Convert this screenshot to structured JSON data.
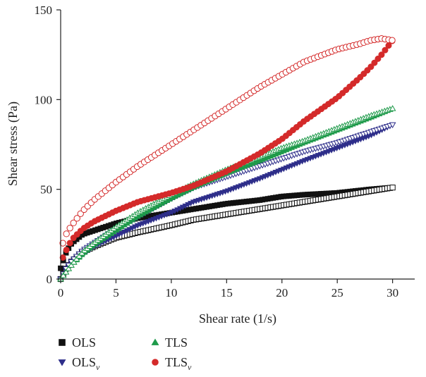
{
  "chart_data": {
    "type": "scatter",
    "title": "",
    "xlabel": "Shear rate (1/s)",
    "ylabel": "Shear stress (Pa)",
    "xlim": [
      0,
      32
    ],
    "ylim": [
      0,
      150
    ],
    "xticks": [
      "0",
      "5",
      "10",
      "15",
      "20",
      "25",
      "30"
    ],
    "yticks": [
      "0",
      "50",
      "100",
      "150"
    ],
    "grid": false,
    "legend_position": "bottom",
    "series": [
      {
        "name": "OLS",
        "subscript": "",
        "marker": "square",
        "color": "#111111",
        "curves": [
          {
            "fill": "solid",
            "x": [
              0,
              0.5,
              1,
              2,
              3,
              5,
              7,
              10,
              12,
              15,
              18,
              20,
              22,
              25,
              28,
              30
            ],
            "y": [
              6,
              15,
              20,
              25,
              27,
              31,
              34,
              37,
              39,
              42,
              44,
              46,
              47,
              48,
              50,
              51
            ]
          },
          {
            "fill": "open",
            "x": [
              0,
              0.5,
              1,
              2,
              3,
              5,
              7,
              10,
              12,
              15,
              18,
              20,
              22,
              25,
              28,
              30
            ],
            "y": [
              0,
              6,
              10,
              15,
              18,
              23,
              26,
              30,
              33,
              36,
              39,
              41,
              43,
              46,
              49,
              51
            ]
          }
        ]
      },
      {
        "name": "OLS",
        "subscript": "v",
        "marker": "triangle-down",
        "color": "#2e2e8a",
        "curves": [
          {
            "fill": "solid",
            "x": [
              0,
              0.5,
              1,
              2,
              3,
              5,
              7,
              10,
              12,
              15,
              18,
              20,
              22,
              25,
              28,
              30
            ],
            "y": [
              0,
              5,
              9,
              14,
              18,
              24,
              30,
              37,
              43,
              49,
              56,
              61,
              66,
              73,
              80,
              86
            ]
          },
          {
            "fill": "open",
            "x": [
              0,
              0.5,
              1,
              2,
              3,
              5,
              7,
              10,
              12,
              15,
              18,
              20,
              22,
              25,
              28,
              30
            ],
            "y": [
              0,
              6,
              10,
              16,
              20,
              28,
              35,
              45,
              51,
              57,
              63,
              67,
              71,
              76,
              82,
              86
            ]
          }
        ]
      },
      {
        "name": "TLS",
        "subscript": "",
        "marker": "triangle-up",
        "color": "#1e9a4a",
        "curves": [
          {
            "fill": "solid",
            "x": [
              0,
              0.5,
              1,
              2,
              3,
              5,
              7,
              10,
              12,
              15,
              18,
              20,
              22,
              25,
              28,
              30
            ],
            "y": [
              0,
              4,
              8,
              14,
              19,
              27,
              35,
              45,
              51,
              59,
              66,
              71,
              76,
              83,
              90,
              95
            ]
          },
          {
            "fill": "open",
            "x": [
              0,
              0.5,
              1,
              2,
              3,
              5,
              7,
              10,
              12,
              15,
              18,
              20,
              22,
              25,
              28,
              30
            ],
            "y": [
              0,
              4,
              8,
              15,
              20,
              29,
              37,
              47,
              53,
              61,
              68,
              73,
              77,
              84,
              91,
              95
            ]
          }
        ]
      },
      {
        "name": "TLS",
        "subscript": "v",
        "marker": "circle",
        "color": "#d42a2a",
        "curves": [
          {
            "fill": "solid",
            "x": [
              0.2,
              0.5,
              1,
              2,
              3,
              5,
              7,
              10,
              12,
              15,
              18,
              20,
              22,
              25,
              27,
              28,
              29,
              30
            ],
            "y": [
              12,
              16,
              22,
              28,
              32,
              38,
              43,
              48,
              52,
              60,
              70,
              78,
              88,
              101,
              112,
              118,
              125,
              133
            ]
          },
          {
            "fill": "open",
            "x": [
              0.2,
              0.5,
              1,
              2,
              3,
              5,
              7,
              10,
              12,
              15,
              18,
              20,
              22,
              25,
              27,
              28,
              29,
              30
            ],
            "y": [
              20,
              25,
              30,
              38,
              44,
              54,
              63,
              75,
              83,
              95,
              107,
              114,
              121,
              128,
              131,
              133,
              134,
              133
            ]
          }
        ]
      }
    ]
  }
}
